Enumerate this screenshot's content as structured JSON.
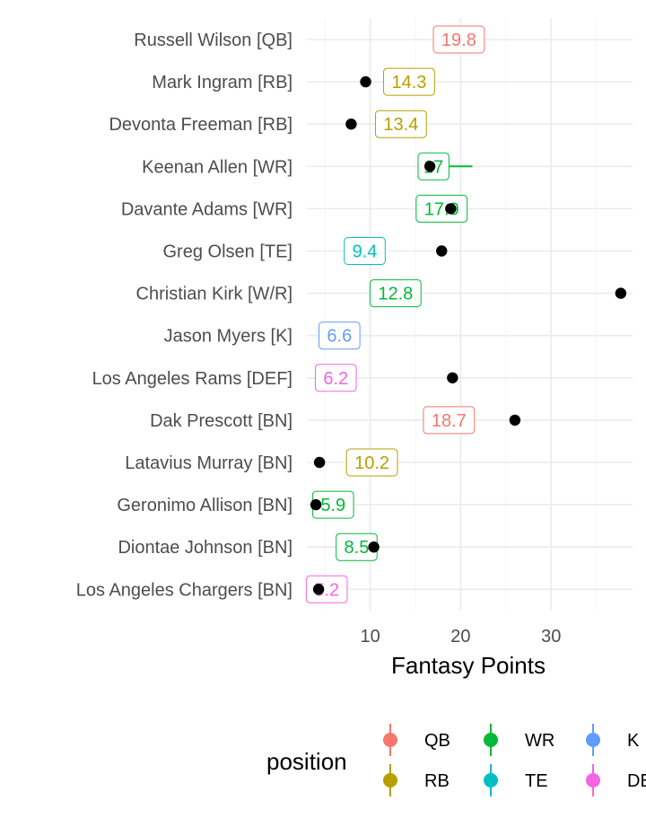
{
  "chart_data": {
    "type": "scatter",
    "xlabel": "Fantasy Points",
    "ylabel": "",
    "xlim": [
      3,
      39
    ],
    "x_ticks": [
      10,
      20,
      30
    ],
    "grid": true,
    "legend": {
      "title": "position",
      "placement": "bottom",
      "entries": [
        {
          "label": "QB",
          "color": "#F8766D"
        },
        {
          "label": "RB",
          "color": "#B79F00"
        },
        {
          "label": "WR",
          "color": "#00BA38"
        },
        {
          "label": "TE",
          "color": "#00BFC4"
        },
        {
          "label": "K",
          "color": "#619CFF"
        },
        {
          "label": "DEF",
          "color": "#F564E3"
        }
      ]
    },
    "players": [
      {
        "name": "Russell Wilson [QB]",
        "position": "QB",
        "projected": 19.8,
        "projected_label": "19.8",
        "actual": null
      },
      {
        "name": "Mark Ingram [RB]",
        "position": "RB",
        "projected": 14.3,
        "projected_label": "14.3",
        "actual": 9.5
      },
      {
        "name": "Devonta Freeman [RB]",
        "position": "RB",
        "projected": 13.4,
        "projected_label": "13.4",
        "actual": 7.9
      },
      {
        "name": "Keenan Allen [WR]",
        "position": "WR",
        "projected": 17,
        "projected_label": "17",
        "actual": 16.6,
        "range": [
          16.3,
          21.3
        ]
      },
      {
        "name": "Davante Adams [WR]",
        "position": "WR",
        "projected": 17.9,
        "projected_label": "17.9",
        "actual": 18.9
      },
      {
        "name": "Greg Olsen [TE]",
        "position": "TE",
        "projected": 9.4,
        "projected_label": "9.4",
        "actual": 17.9
      },
      {
        "name": "Christian Kirk [W/R]",
        "position": "WR",
        "projected": 12.8,
        "projected_label": "12.8",
        "actual": 37.7
      },
      {
        "name": "Jason Myers [K]",
        "position": "K",
        "projected": 6.6,
        "projected_label": "6.6",
        "actual": null
      },
      {
        "name": "Los Angeles Rams [DEF]",
        "position": "DEF",
        "projected": 6.2,
        "projected_label": "6.2",
        "actual": 19.1
      },
      {
        "name": "Dak Prescott [BN]",
        "position": "QB",
        "projected": 18.7,
        "projected_label": "18.7",
        "actual": 26.0
      },
      {
        "name": "Latavius Murray [BN]",
        "position": "RB",
        "projected": 10.2,
        "projected_label": "10.2",
        "actual": 4.4
      },
      {
        "name": "Geronimo Allison [BN]",
        "position": "WR",
        "projected": 5.9,
        "projected_label": "5.9",
        "actual": 4.0
      },
      {
        "name": "Diontae Johnson [BN]",
        "position": "WR",
        "projected": 8.5,
        "projected_label": "8.5",
        "actual": 10.4
      },
      {
        "name": "Los Angeles Chargers [BN]",
        "position": "DEF",
        "projected": 5.2,
        "projected_label": "5.2",
        "actual": 4.3
      }
    ]
  }
}
